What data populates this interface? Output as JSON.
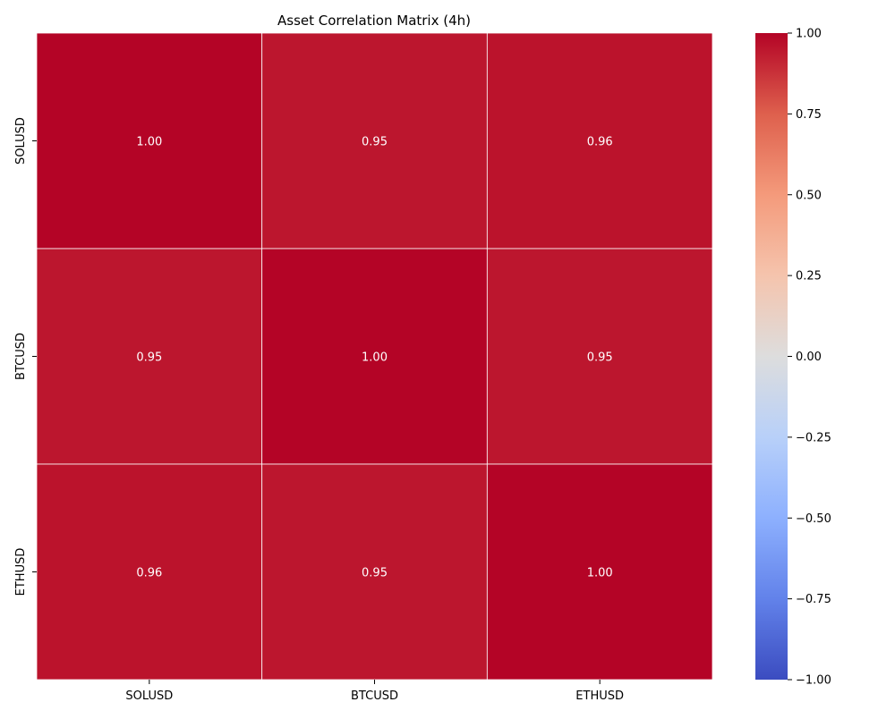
{
  "chart_data": {
    "type": "heatmap",
    "title": "Asset Correlation Matrix (4h)",
    "xlabel": "",
    "ylabel": "",
    "x_labels": [
      "SOLUSD",
      "BTCUSD",
      "ETHUSD"
    ],
    "y_labels": [
      "SOLUSD",
      "BTCUSD",
      "ETHUSD"
    ],
    "values": [
      [
        1.0,
        0.95,
        0.96
      ],
      [
        0.95,
        1.0,
        0.95
      ],
      [
        0.96,
        0.95,
        1.0
      ]
    ],
    "annotations": [
      [
        "1.00",
        "0.95",
        "0.96"
      ],
      [
        "0.95",
        "1.00",
        "0.95"
      ],
      [
        "0.96",
        "0.95",
        "1.00"
      ]
    ],
    "colormap": "coolwarm",
    "vmin": -1.0,
    "vmax": 1.0,
    "colorbar_ticks": [
      1.0,
      0.75,
      0.5,
      0.25,
      0.0,
      -0.25,
      -0.5,
      -0.75,
      -1.0
    ],
    "colorbar_tick_labels": [
      "1.00",
      "0.75",
      "0.50",
      "0.25",
      "0.00",
      "−0.25",
      "−0.50",
      "−0.75",
      "−1.00"
    ],
    "grid": false,
    "cell_border_color": "#ffffff",
    "annotation_color": "#ffffff"
  }
}
